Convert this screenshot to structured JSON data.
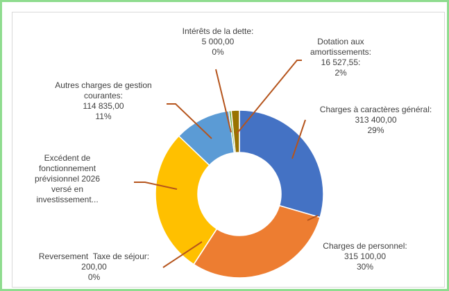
{
  "chart_data": {
    "type": "donut",
    "categories": [
      "Charges à caractères général:",
      "Charges de personnel:",
      "Reversement  Taxe de séjour:",
      "Excédent de fonctionnement prévisionnel 2026 versé en investissement...",
      "Autres charges de gestion courantes:",
      "Intérêts de la dette:",
      "Dotation aux amortissements:"
    ],
    "values": [
      313400,
      315100,
      200,
      297500,
      114835,
      5000,
      16527.55
    ],
    "value_labels": [
      "313 400,00",
      "315 100,00",
      "200,00",
      null,
      "114 835,00",
      "5 000,00",
      "16 527,55:"
    ],
    "percent_labels": [
      "29%",
      "30%",
      "0%",
      null,
      "11%",
      "0%",
      "2%"
    ],
    "colors": [
      "#4472c4",
      "#ed7d31",
      "#a5a5a5",
      "#ffc000",
      "#5b9bd5",
      "#70ad47",
      "#997300"
    ]
  }
}
